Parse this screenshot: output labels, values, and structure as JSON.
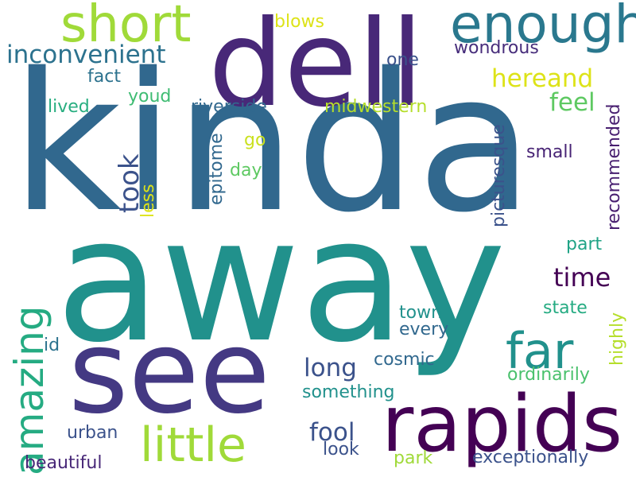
{
  "wordcloud": {
    "words": [
      {
        "text": "kinda",
        "color": "#31688e"
      },
      {
        "text": "away",
        "color": "#21918c"
      },
      {
        "text": "dell",
        "color": "#482878"
      },
      {
        "text": "see",
        "color": "#443983"
      },
      {
        "text": "rapids",
        "color": "#440154"
      },
      {
        "text": "enough",
        "color": "#2a788e"
      },
      {
        "text": "short",
        "color": "#a0da39"
      },
      {
        "text": "little",
        "color": "#a0da39"
      },
      {
        "text": "far",
        "color": "#21918c"
      },
      {
        "text": "amazing",
        "color": "#25ab82"
      },
      {
        "text": "inconvenient",
        "color": "#2c728e"
      },
      {
        "text": "hereand",
        "color": "#dde318"
      },
      {
        "text": "took",
        "color": "#3b528b"
      },
      {
        "text": "time",
        "color": "#440154"
      },
      {
        "text": "long",
        "color": "#3b528b"
      },
      {
        "text": "fool",
        "color": "#3b528b"
      },
      {
        "text": "feel",
        "color": "#5ec962"
      },
      {
        "text": "picturesque",
        "color": "#3b528b"
      },
      {
        "text": "recommended",
        "color": "#481f70"
      },
      {
        "text": "epitome",
        "color": "#31688e"
      },
      {
        "text": "wondrous",
        "color": "#472d7b"
      },
      {
        "text": "riverside",
        "color": "#31688e"
      },
      {
        "text": "midwestern",
        "color": "#b5de2b"
      },
      {
        "text": "blows",
        "color": "#dde318"
      },
      {
        "text": "one",
        "color": "#3b528b"
      },
      {
        "text": "fact",
        "color": "#2c728e"
      },
      {
        "text": "lived",
        "color": "#28ae80"
      },
      {
        "text": "youd",
        "color": "#3fbc73"
      },
      {
        "text": "go",
        "color": "#cae11f"
      },
      {
        "text": "day",
        "color": "#5ec962"
      },
      {
        "text": "less",
        "color": "#dde318"
      },
      {
        "text": "small",
        "color": "#482475"
      },
      {
        "text": "part",
        "color": "#20a386"
      },
      {
        "text": "state",
        "color": "#25ab82"
      },
      {
        "text": "highly",
        "color": "#b5de2b"
      },
      {
        "text": "town",
        "color": "#21918c"
      },
      {
        "text": "every",
        "color": "#31688e"
      },
      {
        "text": "cosmic",
        "color": "#31688e"
      },
      {
        "text": "ordinarily",
        "color": "#4ac16d"
      },
      {
        "text": "something",
        "color": "#21918c"
      },
      {
        "text": "id",
        "color": "#2c728e"
      },
      {
        "text": "urban",
        "color": "#3b528b"
      },
      {
        "text": "look",
        "color": "#3b528b"
      },
      {
        "text": "beautiful",
        "color": "#482878"
      },
      {
        "text": "park",
        "color": "#a0da39"
      },
      {
        "text": "exceptionally",
        "color": "#3b528b"
      }
    ]
  }
}
